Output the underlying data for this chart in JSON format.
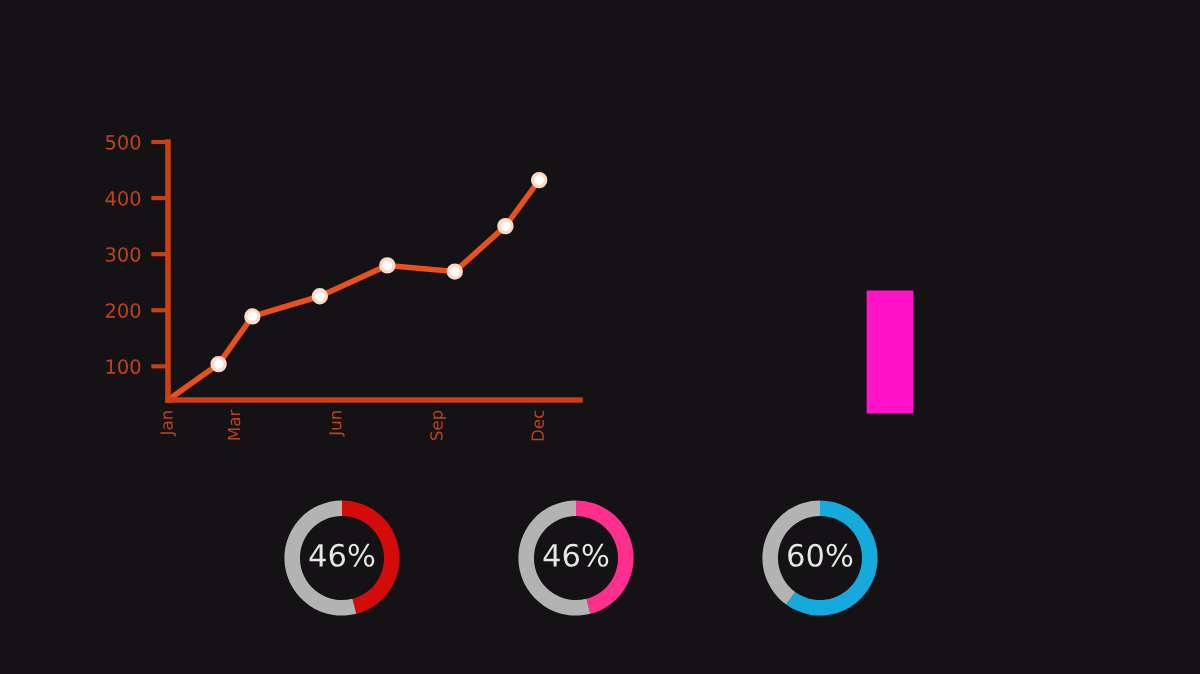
{
  "chart_data": [
    {
      "type": "line",
      "ylim": [
        40,
        500
      ],
      "yticks": [
        100,
        200,
        300,
        400,
        500
      ],
      "grid": false,
      "categories": [
        "Jan",
        null,
        null,
        null,
        "Mar",
        null,
        null,
        null,
        null,
        null,
        "Jun",
        null,
        null,
        null,
        null,
        null,
        "Sep",
        null,
        null,
        null,
        null,
        null,
        "Dec"
      ],
      "series": [
        {
          "type": "line",
          "marker": "none",
          "color": "#e8501e",
          "values": [
            40,
            null,
            null,
            104,
            null,
            189,
            null,
            null,
            null,
            225,
            null,
            null,
            null,
            280,
            null,
            null,
            null,
            269,
            null,
            null,
            350,
            null,
            432
          ]
        },
        {
          "type": "scatter",
          "marker": "circle",
          "color": "#ffffff",
          "values": [
            null,
            null,
            null,
            104,
            null,
            189,
            null,
            null,
            null,
            225,
            null,
            null,
            null,
            280,
            null,
            null,
            null,
            269,
            null,
            null,
            350,
            null,
            432
          ]
        }
      ]
    },
    {
      "type": "donut",
      "categories": [
        null,
        null
      ],
      "values": [
        46,
        54
      ],
      "colors": [
        "#d40b0b",
        "#b3b3b3"
      ],
      "value_labels": [
        "46%",
        null
      ]
    },
    {
      "type": "donut",
      "categories": [
        null,
        null
      ],
      "values": [
        46,
        54
      ],
      "colors": [
        "#ff2f8e",
        "#b3b3b3"
      ],
      "value_labels": [
        "46%",
        null
      ]
    },
    {
      "type": "donut",
      "categories": [
        null,
        null
      ],
      "values": [
        60,
        40
      ],
      "colors": [
        "#16a9dc",
        "#b3b3b3"
      ],
      "value_labels": [
        "60%",
        null
      ]
    }
  ]
}
